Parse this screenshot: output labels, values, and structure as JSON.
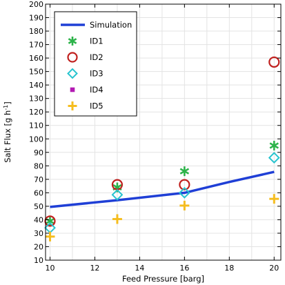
{
  "chart_data": {
    "type": "scatter",
    "xlabel": "Feed Pressure [barg]",
    "ylabel": "Salt Flux [g h",
    "ylabel_superscript": "-1",
    "ylabel_suffix": "]",
    "xlim": [
      9.8,
      20.3
    ],
    "ylim": [
      10,
      200
    ],
    "xticks": [
      10,
      12,
      14,
      16,
      18,
      20
    ],
    "yticks": [
      10,
      20,
      30,
      40,
      50,
      60,
      70,
      80,
      90,
      100,
      110,
      120,
      130,
      140,
      150,
      160,
      170,
      180,
      190,
      200
    ],
    "grid": true,
    "legend_position": "top-left",
    "series": [
      {
        "name": "Simulation",
        "kind": "line",
        "marker": "none",
        "color": "#1f3fd6",
        "points": [
          [
            10,
            49.5
          ],
          [
            13,
            54.5
          ],
          [
            16,
            60
          ],
          [
            18,
            68
          ],
          [
            20,
            75.5
          ]
        ]
      },
      {
        "name": "ID1",
        "kind": "scatter",
        "marker": "asterisk",
        "color": "#2db34a",
        "points": [
          [
            10,
            39
          ],
          [
            13,
            64
          ],
          [
            16,
            76
          ],
          [
            20,
            95
          ]
        ]
      },
      {
        "name": "ID2",
        "kind": "scatter",
        "marker": "circle",
        "color": "#c0201e",
        "points": [
          [
            10,
            39
          ],
          [
            13,
            66
          ],
          [
            16,
            66
          ],
          [
            20,
            157
          ]
        ]
      },
      {
        "name": "ID3",
        "kind": "scatter",
        "marker": "diamond",
        "color": "#27c4cf",
        "points": [
          [
            10,
            34
          ],
          [
            13,
            58.5
          ],
          [
            16,
            60
          ],
          [
            20,
            86
          ]
        ]
      },
      {
        "name": "ID4",
        "kind": "scatter",
        "marker": "square",
        "color": "#b31ab3",
        "points": []
      },
      {
        "name": "ID5",
        "kind": "scatter",
        "marker": "plus",
        "color": "#f5bd1f",
        "points": [
          [
            10,
            27.5
          ],
          [
            13,
            40.5
          ],
          [
            16,
            50.5
          ],
          [
            20,
            55.5
          ]
        ]
      }
    ]
  }
}
